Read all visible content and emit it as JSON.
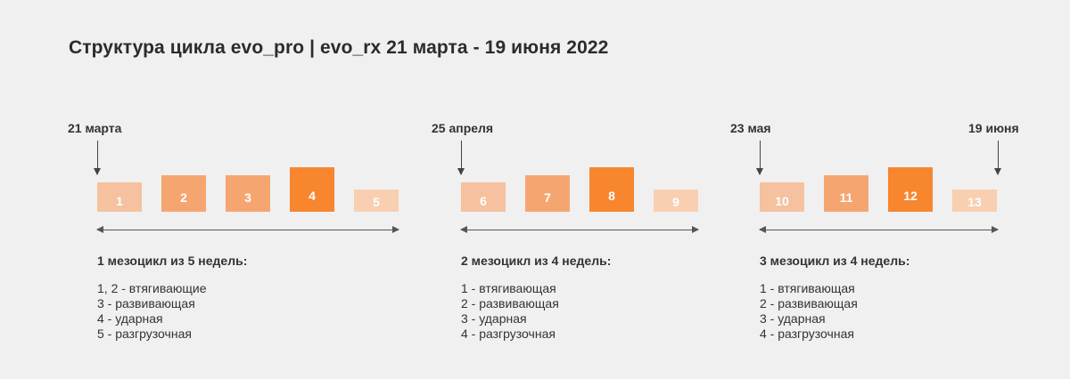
{
  "title": "Структура цикла evo_pro | evo_rx 21 марта - 19 июня 2022",
  "colors": {
    "light": "#f5c19e",
    "medium": "#f5a670",
    "strong": "#f7862f",
    "pale": "#f8cfb0"
  },
  "dates": {
    "d1": "21 марта",
    "d2": "25 апреля",
    "d3": "23 мая",
    "d4": "19 июня"
  },
  "cycles": [
    {
      "title": "1 мезоцикл из 5 недель:",
      "weeks": [
        "1",
        "2",
        "3",
        "4",
        "5"
      ],
      "intensity": [
        2,
        3,
        3,
        4,
        1
      ],
      "legend": [
        "1, 2 - втягивающие",
        "3 - развивающая",
        "4 - ударная",
        "5 - разгрузочная"
      ]
    },
    {
      "title": "2 мезоцикл из 4 недель:",
      "weeks": [
        "6",
        "7",
        "8",
        "9"
      ],
      "intensity": [
        2,
        3,
        4,
        1
      ],
      "legend": [
        "1 - втягивающая",
        "2 - развивающая",
        "3 - ударная",
        "4 - разгрузочная"
      ]
    },
    {
      "title": "3 мезоцикл из 4 недель:",
      "weeks": [
        "10",
        "11",
        "12",
        "13"
      ],
      "intensity": [
        2,
        3,
        4,
        1
      ],
      "legend": [
        "1 - втягивающая",
        "2 - развивающая",
        "3 - ударная",
        "4 - разгрузочная"
      ]
    }
  ]
}
